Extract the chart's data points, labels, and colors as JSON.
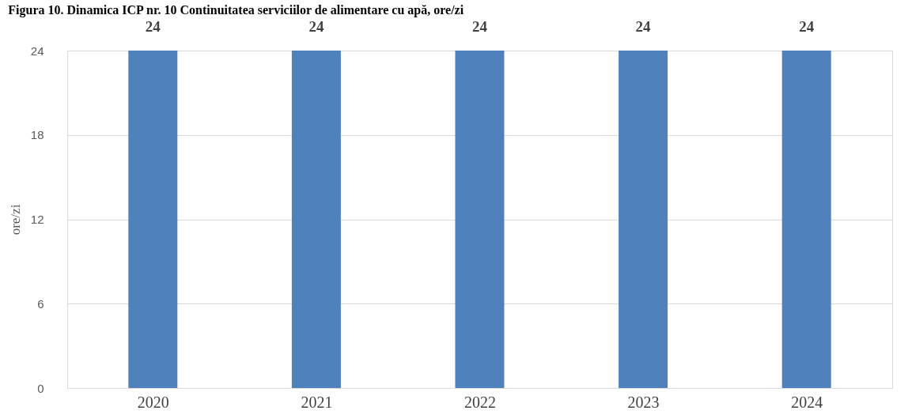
{
  "chart_data": {
    "type": "bar",
    "title": "Figura 10. Dinamica ICP nr. 10 Continuitatea serviciilor de alimentare cu apă, ore/zi",
    "ylabel": "ore/zi",
    "categories": [
      "2020",
      "2021",
      "2022",
      "2023",
      "2024"
    ],
    "values": [
      24,
      24,
      24,
      24,
      24
    ],
    "color": "#4f81bd",
    "ylim": [
      0,
      24
    ],
    "yticks": [
      0,
      6,
      12,
      18,
      24
    ],
    "grid": "y",
    "data_labels": true
  }
}
